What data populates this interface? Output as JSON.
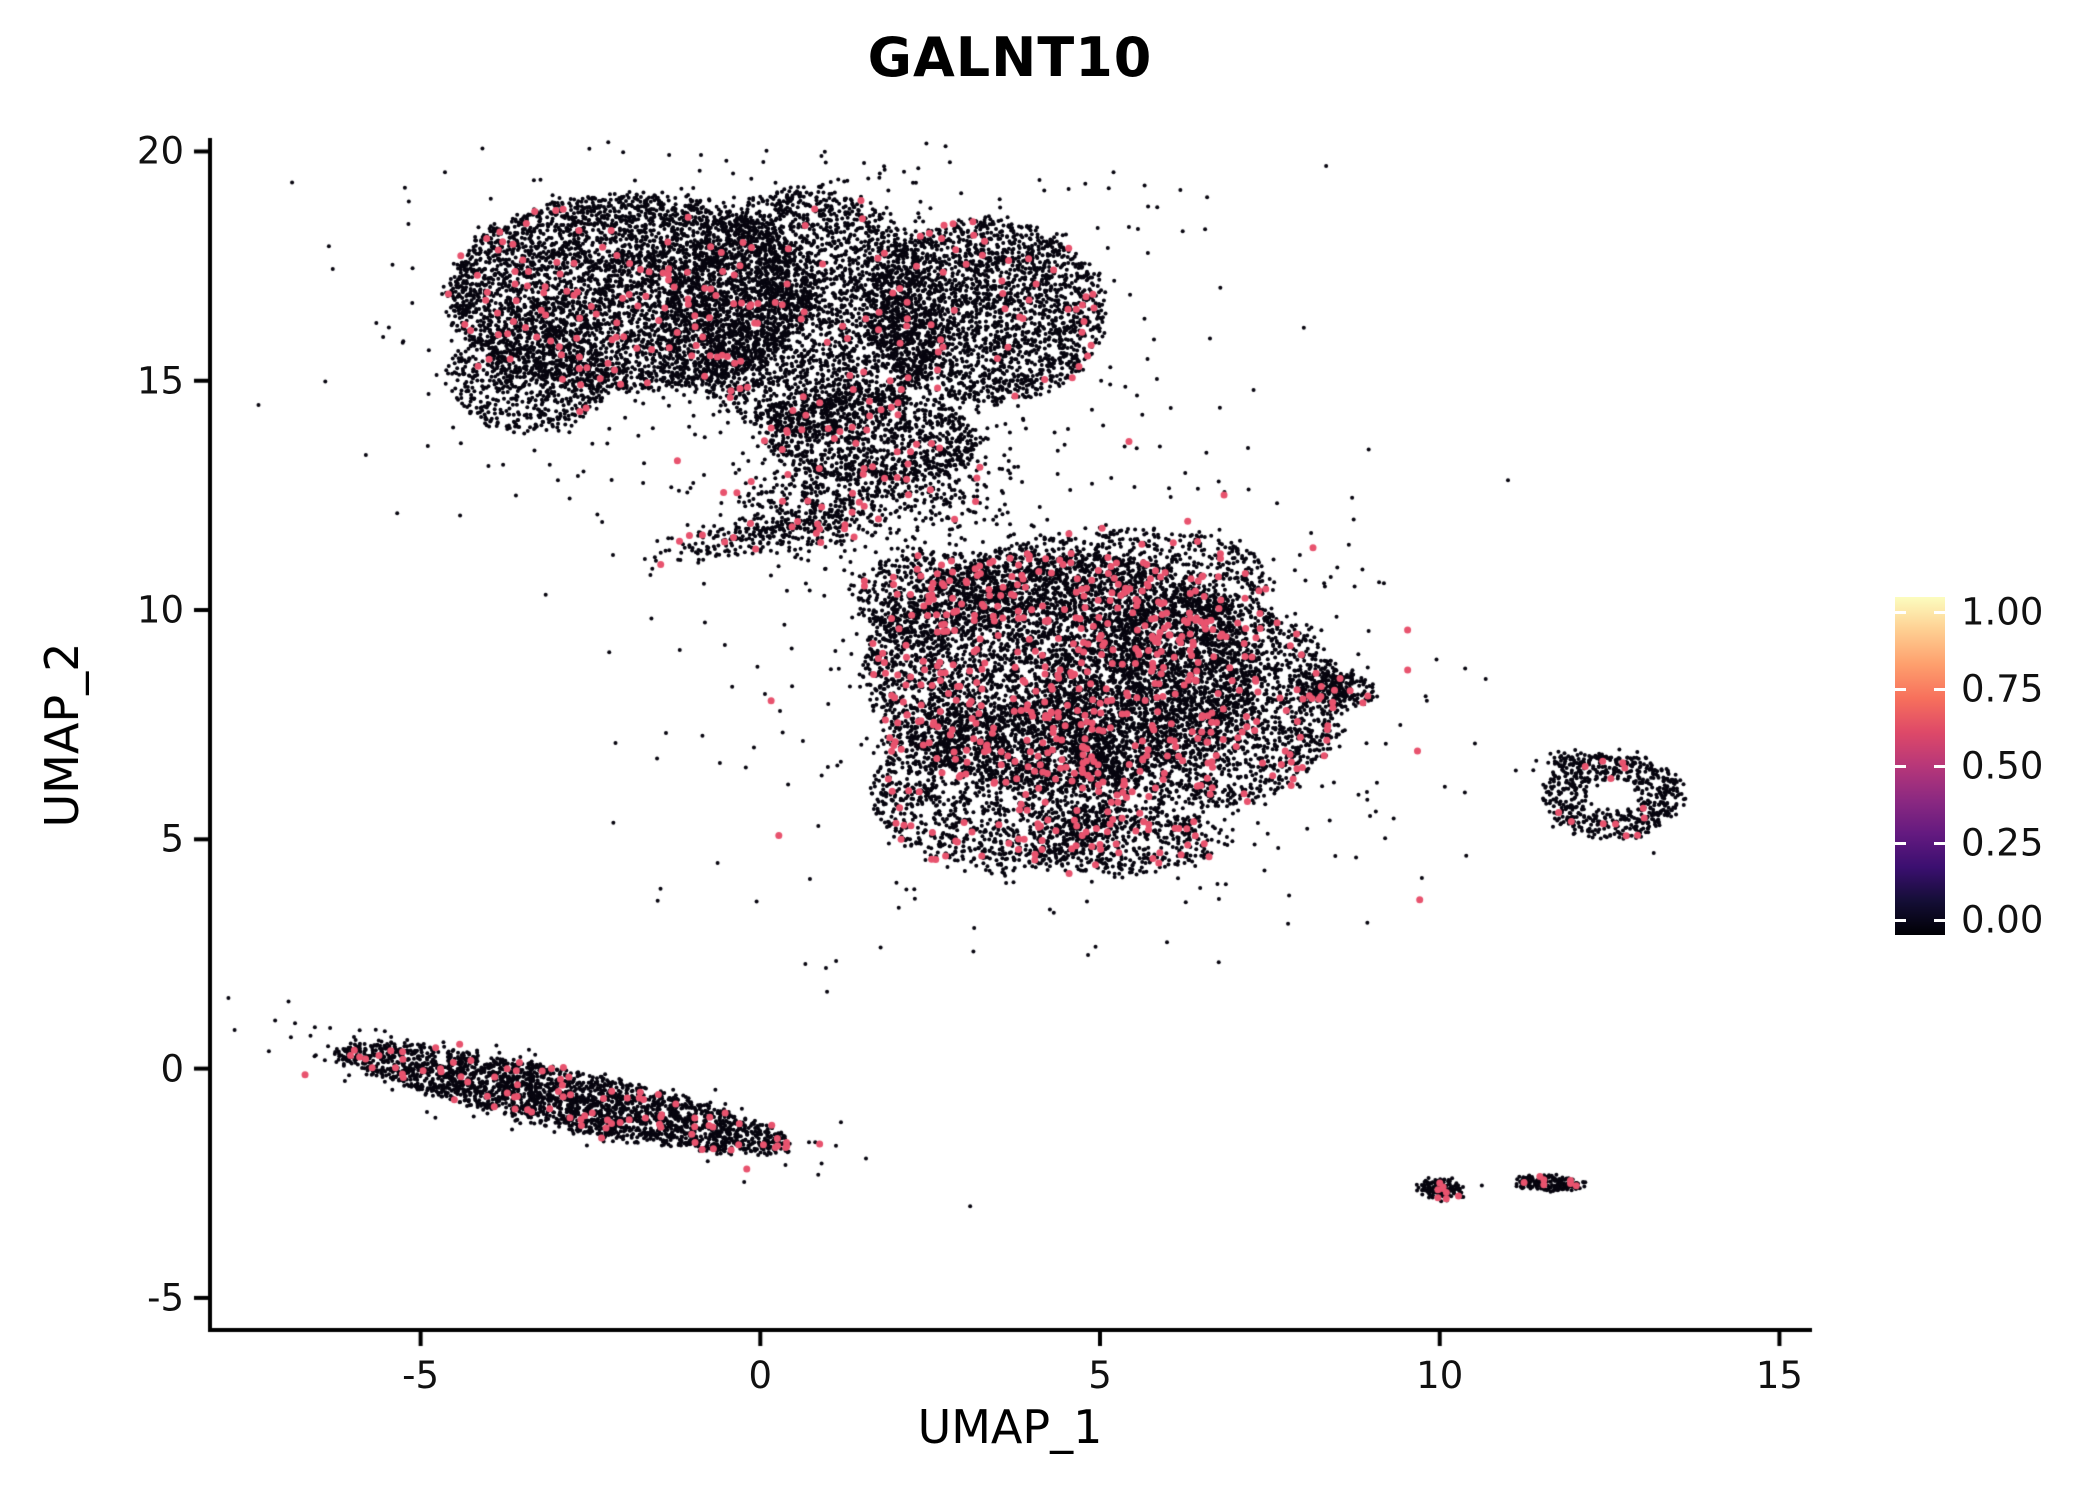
{
  "chart_data": {
    "type": "scatter",
    "title": "GALNT10",
    "xlabel": "UMAP_1",
    "ylabel": "UMAP_2",
    "xlim": [
      -8.1,
      15.45
    ],
    "ylim": [
      -5.7,
      20.25
    ],
    "grid": false,
    "background": "#FFFFFF",
    "axis_color": "#000000",
    "point_color": "#07050F",
    "highlight_color": "#E8536E",
    "point_radius_px": 2.0,
    "highlight_radius_px": 3.5,
    "seed": 1234,
    "n_points_approx": 27800,
    "xticks": [
      {
        "label": "-5",
        "value": -5
      },
      {
        "label": "0",
        "value": 0
      },
      {
        "label": "5",
        "value": 5
      },
      {
        "label": "10",
        "value": 10
      },
      {
        "label": "15",
        "value": 15
      }
    ],
    "yticks": [
      {
        "label": "20",
        "value": 20
      },
      {
        "label": "15",
        "value": 15
      },
      {
        "label": "10",
        "value": 10
      },
      {
        "label": "5",
        "value": 5
      },
      {
        "label": "0",
        "value": 0
      },
      {
        "label": "-5",
        "value": -5
      }
    ],
    "legend": {
      "position": "right",
      "colormap_name": "magma",
      "ticks": [
        {
          "label": "1.00",
          "value": 1.0
        },
        {
          "label": "0.75",
          "value": 0.75
        },
        {
          "label": "0.50",
          "value": 0.5
        },
        {
          "label": "0.25",
          "value": 0.25
        },
        {
          "label": "0.00",
          "value": 0.0
        }
      ],
      "colors": [
        "#000004",
        "#140e36",
        "#3b0f70",
        "#641a80",
        "#8c2981",
        "#b73779",
        "#de4968",
        "#f7705c",
        "#fe9f6d",
        "#fece91",
        "#fcfdbf"
      ]
    },
    "clusters": [
      {
        "name": "upper-left-lobe",
        "shape": "disk",
        "cx": -1.9,
        "cy": 16.9,
        "rx": 2.7,
        "ry": 2.15,
        "angle": 0,
        "count": 4300,
        "highlight_fraction": 0.022
      },
      {
        "name": "upper-mid-lobe",
        "shape": "disk",
        "cx": 0.7,
        "cy": 16.5,
        "rx": 2.0,
        "ry": 2.7,
        "angle": 0,
        "count": 2800,
        "highlight_fraction": 0.022
      },
      {
        "name": "upper-right-lobe",
        "shape": "disk",
        "cx": 3.3,
        "cy": 16.5,
        "rx": 1.75,
        "ry": 2.0,
        "angle": 0,
        "count": 2300,
        "highlight_fraction": 0.022
      },
      {
        "name": "upper-left-bulge",
        "shape": "disk",
        "cx": -3.4,
        "cy": 15.1,
        "rx": 1.15,
        "ry": 1.2,
        "angle": 0,
        "count": 650,
        "highlight_fraction": 0.02
      },
      {
        "name": "upper-fringe",
        "shape": "gauss",
        "cx": 0.2,
        "cy": 16.3,
        "rx": 2.7,
        "ry": 2.0,
        "angle": 0,
        "count": 800,
        "highlight_fraction": 0.02
      },
      {
        "name": "upper-lower-lobe",
        "shape": "disk",
        "cx": 1.6,
        "cy": 13.8,
        "rx": 1.6,
        "ry": 1.05,
        "angle": -8,
        "count": 900,
        "highlight_fraction": 0.03
      },
      {
        "name": "neck-funnel",
        "shape": "gauss",
        "cx": 1.0,
        "cy": 12.5,
        "rx": 0.75,
        "ry": 0.65,
        "angle": 0,
        "count": 450,
        "highlight_fraction": 0.03
      },
      {
        "name": "neck-tail",
        "shape": "gauss",
        "cx": 0.15,
        "cy": 11.75,
        "rx": 0.85,
        "ry": 0.2,
        "angle": 18,
        "count": 300,
        "highlight_fraction": 0.03
      },
      {
        "name": "neck-right",
        "shape": "gauss",
        "cx": 2.75,
        "cy": 12.9,
        "rx": 0.5,
        "ry": 0.75,
        "angle": 0,
        "count": 230,
        "highlight_fraction": 0.03
      },
      {
        "name": "central-main",
        "shape": "disk",
        "cx": 4.4,
        "cy": 8.7,
        "rx": 2.9,
        "ry": 2.6,
        "angle": 0,
        "count": 4300,
        "highlight_fraction": 0.055
      },
      {
        "name": "central-right",
        "shape": "disk",
        "cx": 6.4,
        "cy": 8.0,
        "rx": 2.2,
        "ry": 2.3,
        "angle": 0,
        "count": 2500,
        "highlight_fraction": 0.055
      },
      {
        "name": "central-left-low",
        "shape": "disk",
        "cx": 3.5,
        "cy": 6.2,
        "rx": 1.9,
        "ry": 1.9,
        "angle": 0,
        "count": 1600,
        "highlight_fraction": 0.05
      },
      {
        "name": "central-top",
        "shape": "disk",
        "cx": 5.3,
        "cy": 10.7,
        "rx": 2.3,
        "ry": 1.05,
        "angle": 0,
        "count": 900,
        "highlight_fraction": 0.05
      },
      {
        "name": "central-upper-left",
        "shape": "disk",
        "cx": 2.5,
        "cy": 10.3,
        "rx": 1.15,
        "ry": 1.0,
        "angle": 0,
        "count": 500,
        "highlight_fraction": 0.05
      },
      {
        "name": "central-fringe",
        "shape": "gauss",
        "cx": 4.9,
        "cy": 8.2,
        "rx": 2.4,
        "ry": 2.2,
        "angle": 0,
        "count": 800,
        "highlight_fraction": 0.05
      },
      {
        "name": "central-point-right",
        "shape": "disk",
        "cx": 8.45,
        "cy": 8.3,
        "rx": 0.6,
        "ry": 0.38,
        "angle": -20,
        "count": 250,
        "highlight_fraction": 0.05
      },
      {
        "name": "central-bottom",
        "shape": "disk",
        "cx": 5.3,
        "cy": 5.0,
        "rx": 1.6,
        "ry": 0.75,
        "angle": 0,
        "count": 550,
        "highlight_fraction": 0.05
      },
      {
        "name": "ring-island",
        "shape": "annulus",
        "cx": 12.55,
        "cy": 5.95,
        "r_inner": 0.36,
        "r_outer": 0.92,
        "squash": 1.12,
        "count": 600,
        "highlight_fraction": 0.02
      },
      {
        "name": "ring-satellite",
        "shape": "gauss",
        "cx": 11.9,
        "cy": 6.7,
        "rx": 0.22,
        "ry": 0.1,
        "angle": 0,
        "count": 50,
        "highlight_fraction": 0.02
      },
      {
        "name": "left-stripe",
        "shape": "disk",
        "cx": -2.9,
        "cy": -0.65,
        "rx": 3.5,
        "ry": 0.6,
        "angle": -17.5,
        "count": 2300,
        "highlight_fraction": 0.04
      },
      {
        "name": "left-stripe-fringe",
        "shape": "gauss",
        "cx": -2.9,
        "cy": -0.65,
        "rx": 1.9,
        "ry": 0.33,
        "angle": -17.5,
        "count": 350,
        "highlight_fraction": 0.04
      },
      {
        "name": "small-island-left",
        "shape": "disk",
        "cx": 10.02,
        "cy": -2.62,
        "rx": 0.34,
        "ry": 0.18,
        "angle": 0,
        "count": 150,
        "highlight_fraction": 0.06
      },
      {
        "name": "small-island-right",
        "shape": "disk",
        "cx": 11.62,
        "cy": -2.5,
        "rx": 0.5,
        "ry": 0.12,
        "angle": -4,
        "count": 190,
        "highlight_fraction": 0.06
      }
    ],
    "singles": [
      [
        6.75,
        3.7
      ],
      [
        9.0,
        8.2
      ],
      [
        10.62,
        -2.55
      ],
      [
        11.12,
        6.5
      ],
      [
        13.15,
        4.7
      ],
      [
        -0.5,
        19.8
      ],
      [
        0.9,
        19.9
      ]
    ]
  }
}
